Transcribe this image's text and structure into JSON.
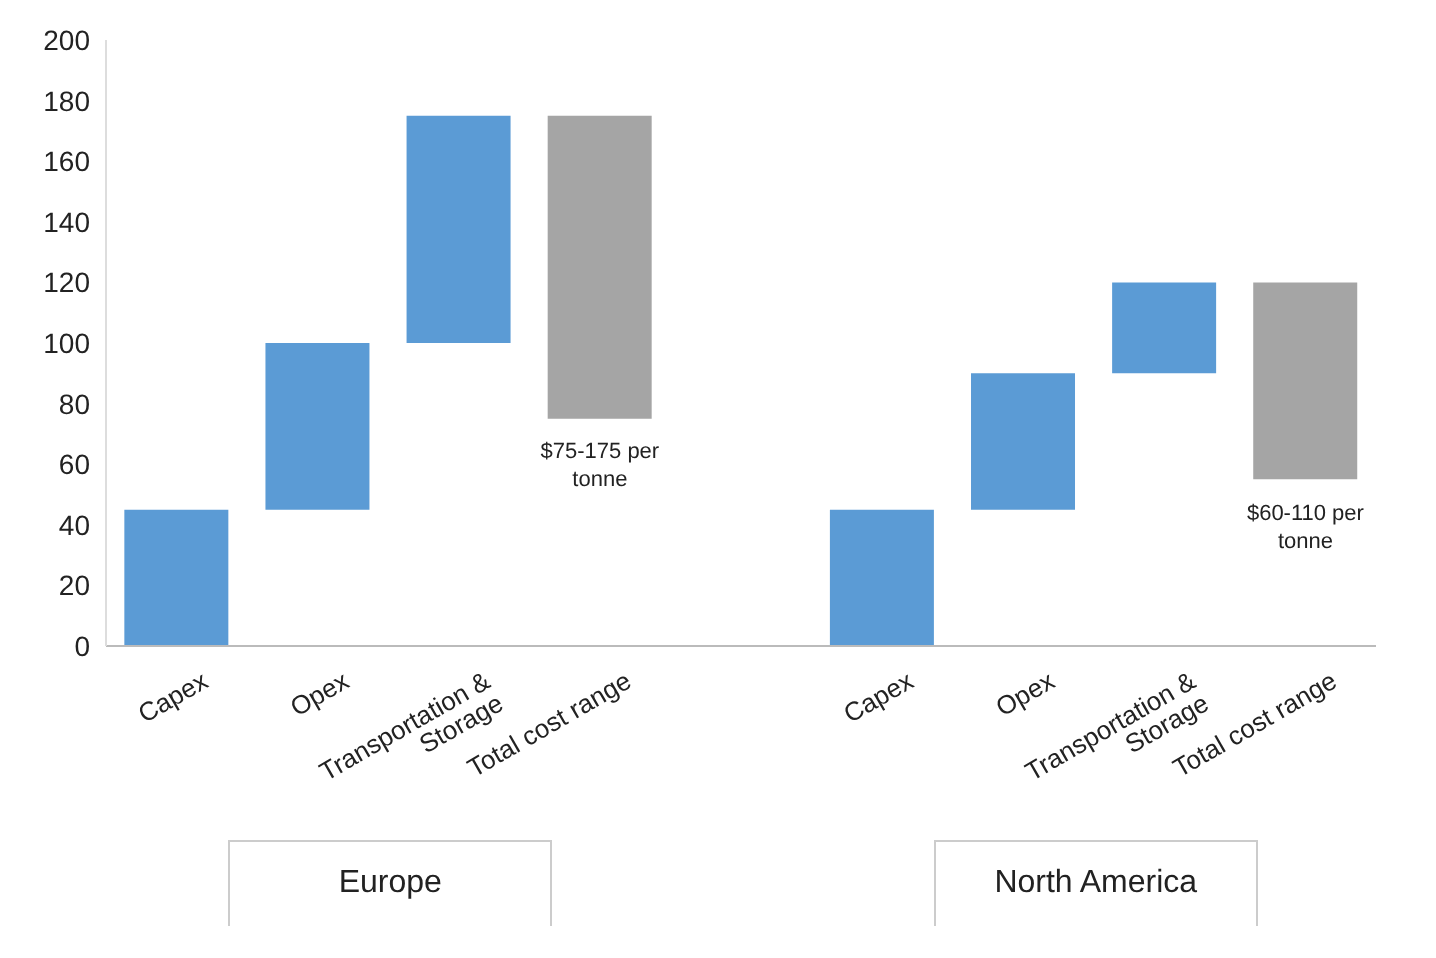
{
  "chart_data": {
    "type": "bar",
    "categories": [
      "Capex",
      "Opex",
      "Transportation & Storage",
      "Total cost range",
      null,
      "Capex",
      "Opex",
      "Transportation & Storage",
      "Total cost range"
    ],
    "values": [
      45,
      55,
      75,
      100,
      null,
      45,
      45,
      30,
      65
    ],
    "base": [
      0,
      45,
      100,
      75,
      null,
      0,
      45,
      90,
      55
    ],
    "colors": [
      "#5b9bd5",
      "#5b9bd5",
      "#5b9bd5",
      "#a5a5a5",
      null,
      "#5b9bd5",
      "#5b9bd5",
      "#5b9bd5",
      "#a5a5a5"
    ],
    "ylim": [
      0,
      200
    ],
    "yticks": [
      0,
      20,
      40,
      60,
      80,
      100,
      120,
      140,
      160,
      180,
      200
    ],
    "grid": false,
    "legend": false,
    "annotations": [
      "$75-175 per tonne",
      "$60-110 per tonne",
      "Europe",
      "North America"
    ]
  }
}
